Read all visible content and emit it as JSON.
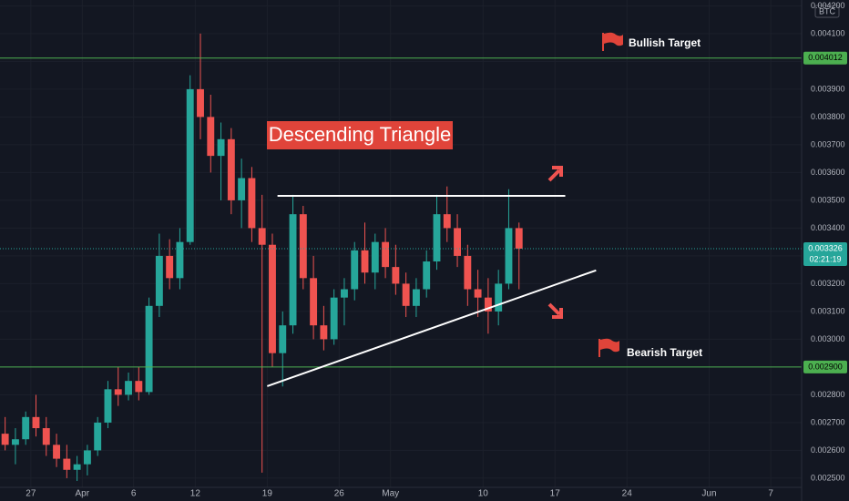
{
  "chart_data": {
    "type": "candlestick",
    "symbol": "BTC",
    "annotation": "Descending Triangle",
    "x": [
      "Mar 24",
      "Mar 25",
      "Mar 26",
      "Mar 27",
      "Mar 28",
      "Mar 29",
      "Mar 30",
      "Mar 31",
      "Apr 1",
      "Apr 2",
      "Apr 3",
      "Apr 4",
      "Apr 5",
      "Apr 6",
      "Apr 7",
      "Apr 8",
      "Apr 9",
      "Apr 10",
      "Apr 11",
      "Apr 12",
      "Apr 13",
      "Apr 14",
      "Apr 15",
      "Apr 16",
      "Apr 17",
      "Apr 18",
      "Apr 19",
      "Apr 20",
      "Apr 21",
      "Apr 22",
      "Apr 23",
      "Apr 24",
      "Apr 25",
      "Apr 26",
      "Apr 27",
      "Apr 28",
      "Apr 29",
      "Apr 30",
      "May 1",
      "May 2",
      "May 3",
      "May 4",
      "May 5",
      "May 6",
      "May 7",
      "May 8",
      "May 9",
      "May 10",
      "May 11",
      "May 12",
      "May 13"
    ],
    "open": [
      0.00266,
      0.00262,
      0.00264,
      0.00272,
      0.00268,
      0.00262,
      0.00257,
      0.00253,
      0.00255,
      0.0026,
      0.0027,
      0.00282,
      0.0028,
      0.00285,
      0.00281,
      0.00312,
      0.0033,
      0.00322,
      0.00335,
      0.0039,
      0.0038,
      0.00366,
      0.00372,
      0.0035,
      0.00358,
      0.0034,
      0.00334,
      0.00295,
      0.00305,
      0.00345,
      0.00322,
      0.00305,
      0.003,
      0.00315,
      0.00318,
      0.00332,
      0.00324,
      0.00335,
      0.00326,
      0.0032,
      0.00312,
      0.00318,
      0.00328,
      0.00345,
      0.0034,
      0.0033,
      0.00318,
      0.00315,
      0.0031,
      0.0032,
      0.0034
    ],
    "high": [
      0.00272,
      0.00268,
      0.00274,
      0.0028,
      0.00272,
      0.00266,
      0.00262,
      0.00258,
      0.00262,
      0.00272,
      0.00285,
      0.0029,
      0.00288,
      0.0029,
      0.00315,
      0.00338,
      0.00336,
      0.0034,
      0.00395,
      0.0041,
      0.00388,
      0.00378,
      0.00376,
      0.00365,
      0.00362,
      0.00352,
      0.00338,
      0.0031,
      0.00352,
      0.00348,
      0.0033,
      0.00312,
      0.00318,
      0.00322,
      0.00335,
      0.00342,
      0.00338,
      0.0034,
      0.00334,
      0.00324,
      0.00322,
      0.00332,
      0.00352,
      0.00355,
      0.00345,
      0.00334,
      0.00325,
      0.00322,
      0.00325,
      0.00354,
      0.00342
    ],
    "low": [
      0.0026,
      0.00255,
      0.00262,
      0.00265,
      0.00258,
      0.00254,
      0.0025,
      0.00249,
      0.00251,
      0.00258,
      0.00268,
      0.00276,
      0.00278,
      0.00278,
      0.0028,
      0.00308,
      0.00318,
      0.00318,
      0.00334,
      0.00372,
      0.0036,
      0.0035,
      0.00345,
      0.0034,
      0.00335,
      0.00252,
      0.0029,
      0.00283,
      0.00302,
      0.00318,
      0.003,
      0.00296,
      0.00298,
      0.00305,
      0.00314,
      0.0032,
      0.00318,
      0.00322,
      0.00316,
      0.00308,
      0.00308,
      0.00315,
      0.00325,
      0.00335,
      0.00326,
      0.00312,
      0.00308,
      0.00302,
      0.00305,
      0.00318,
      0.00318
    ],
    "close": [
      0.00262,
      0.00264,
      0.00272,
      0.00268,
      0.00262,
      0.00257,
      0.00253,
      0.00255,
      0.0026,
      0.0027,
      0.00282,
      0.0028,
      0.00285,
      0.00281,
      0.00312,
      0.0033,
      0.00322,
      0.00335,
      0.0039,
      0.0038,
      0.00366,
      0.00372,
      0.0035,
      0.00358,
      0.0034,
      0.00334,
      0.00295,
      0.00305,
      0.00345,
      0.00322,
      0.00305,
      0.003,
      0.00315,
      0.00318,
      0.00332,
      0.00324,
      0.00335,
      0.00326,
      0.0032,
      0.00312,
      0.00318,
      0.00328,
      0.00345,
      0.0034,
      0.0033,
      0.00318,
      0.00315,
      0.0031,
      0.0032,
      0.0034,
      0.003326
    ],
    "up_color": "#26a69a",
    "down_color": "#ef5350",
    "xlim": [
      "Mar 24",
      "Jun 10"
    ],
    "xticks": [
      {
        "value": "Mar 27",
        "label": "27"
      },
      {
        "value": "Apr 1",
        "label": "Apr"
      },
      {
        "value": "Apr 6",
        "label": "6"
      },
      {
        "value": "Apr 12",
        "label": "12"
      },
      {
        "value": "Apr 19",
        "label": "19"
      },
      {
        "value": "Apr 26",
        "label": "26"
      },
      {
        "value": "May 1",
        "label": "May"
      },
      {
        "value": "May 10",
        "label": "10"
      },
      {
        "value": "May 17",
        "label": "17"
      },
      {
        "value": "May 24",
        "label": "24"
      },
      {
        "value": "Jun 1",
        "label": "Jun"
      },
      {
        "value": "Jun 7",
        "label": "7"
      }
    ],
    "ylim": [
      0.002467,
      0.004221
    ],
    "yticks": [
      {
        "value": 0.0025,
        "label": "0.002500"
      },
      {
        "value": 0.0026,
        "label": "0.002600"
      },
      {
        "value": 0.0027,
        "label": "0.002700"
      },
      {
        "value": 0.0028,
        "label": "0.002800"
      },
      {
        "value": 0.0029,
        "label": "0.002900"
      },
      {
        "value": 0.003,
        "label": "0.003000"
      },
      {
        "value": 0.0031,
        "label": "0.003100"
      },
      {
        "value": 0.0032,
        "label": "0.003200"
      },
      {
        "value": 0.0033,
        "label": "0.003300"
      },
      {
        "value": 0.0034,
        "label": "0.003400"
      },
      {
        "value": 0.0035,
        "label": "0.003500"
      },
      {
        "value": 0.0036,
        "label": "0.003600"
      },
      {
        "value": 0.0037,
        "label": "0.003700"
      },
      {
        "value": 0.0038,
        "label": "0.003800"
      },
      {
        "value": 0.0039,
        "label": "0.003900"
      },
      {
        "value": 0.004,
        "label": "0.004000"
      },
      {
        "value": 0.0041,
        "label": "0.004100"
      },
      {
        "value": 0.0042,
        "label": "0.004200"
      }
    ],
    "grid": true,
    "levels": [
      {
        "name": "Bullish Target",
        "value": 0.004012,
        "label": "0.004012",
        "color": "#4caf50"
      },
      {
        "name": "Bearish Target",
        "value": 0.0029,
        "label": "0.002900",
        "color": "#4caf50"
      }
    ],
    "last_price": {
      "value": 0.003326,
      "label": "0.003326",
      "countdown": "02:21:19",
      "color": "#26a69a"
    },
    "trend_lines": [
      {
        "x": [
          "Apr 20",
          "May 18"
        ],
        "values": [
          0.003516,
          0.003516
        ]
      },
      {
        "x": [
          "Apr 19",
          "May 21"
        ],
        "values": [
          0.002831,
          0.003248
        ]
      }
    ]
  }
}
